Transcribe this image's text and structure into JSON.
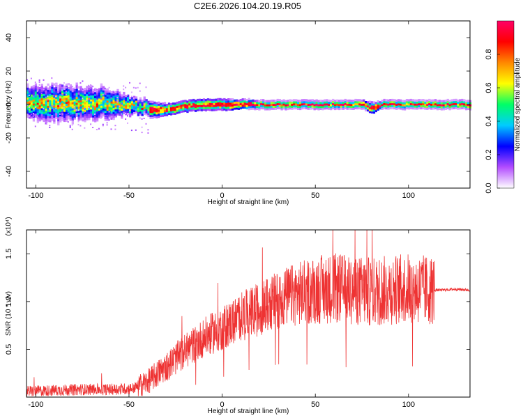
{
  "title": "C2E6.2026.104.20.19.R05",
  "chart_data": [
    {
      "type": "heatmap",
      "xlabel": "Height of straight line (km)",
      "ylabel": "Frequency (Hz)",
      "xlim": [
        -105,
        133
      ],
      "ylim": [
        -50,
        50
      ],
      "x_ticks": [
        -100,
        -50,
        0,
        50,
        100
      ],
      "x_tick_labels": [
        "-100",
        "-50",
        "0",
        "50",
        "100"
      ],
      "y_ticks": [
        -40,
        -20,
        0,
        20,
        40
      ],
      "y_tick_labels": [
        "-40",
        "-20",
        "0",
        "20",
        "40"
      ],
      "colorbar": {
        "label": "Normalized spectral amplitude",
        "range": [
          0,
          1
        ],
        "ticks": [
          0.0,
          0.2,
          0.4,
          0.6,
          0.8
        ],
        "tick_labels": [
          "0.0",
          "0.2",
          "0.4",
          "0.6",
          "0.8"
        ],
        "colormap": [
          "#ffffff",
          "#b34dff",
          "#0000ff",
          "#00ccff",
          "#00ff66",
          "#ffff00",
          "#ff8800",
          "#ff0000",
          "#ff0066"
        ]
      },
      "ridge": {
        "description_free": true,
        "x": [
          -105,
          -95,
          -85,
          -75,
          -65,
          -55,
          -45,
          -38,
          -30,
          -20,
          -10,
          0,
          20,
          40,
          60,
          75,
          80,
          85,
          100,
          133
        ],
        "center_freq": [
          2,
          1,
          1,
          1,
          1,
          0,
          -1,
          -3,
          -3,
          -1,
          0,
          0,
          0,
          0,
          0,
          0,
          -2,
          0,
          0,
          0
        ],
        "halfwidth": [
          8,
          9,
          9,
          8,
          8,
          6,
          4,
          4,
          3,
          3,
          3,
          3,
          2,
          2,
          2,
          2,
          3,
          2,
          2,
          2
        ]
      }
    },
    {
      "type": "line",
      "xlabel": "Height of straight line (km)",
      "ylabel": "SNR (10 * v/v)",
      "y_multiplier": "(x10⁴)",
      "xlim": [
        -105,
        133
      ],
      "ylim": [
        0,
        1.75
      ],
      "x_ticks": [
        -100,
        -50,
        0,
        50,
        100
      ],
      "x_tick_labels": [
        "-100",
        "-50",
        "0",
        "50",
        "100"
      ],
      "y_ticks": [
        0.5,
        1.0,
        1.5
      ],
      "y_tick_labels": [
        "0.5",
        "1.0",
        "1.5"
      ],
      "series": [
        {
          "color": "#ee3333",
          "x": [
            -105,
            -90,
            -75,
            -60,
            -48,
            -40,
            -30,
            -20,
            -10,
            0,
            10,
            20,
            30,
            40,
            50,
            60,
            70,
            80,
            90,
            100,
            110,
            114,
            118,
            125,
            133
          ],
          "envelope_mean": [
            0.06,
            0.07,
            0.08,
            0.08,
            0.09,
            0.16,
            0.32,
            0.48,
            0.62,
            0.72,
            0.84,
            0.92,
            1.02,
            1.08,
            1.12,
            1.14,
            1.12,
            1.1,
            1.12,
            1.14,
            1.12,
            1.12,
            1.12,
            1.13,
            1.12
          ]
        }
      ]
    }
  ]
}
